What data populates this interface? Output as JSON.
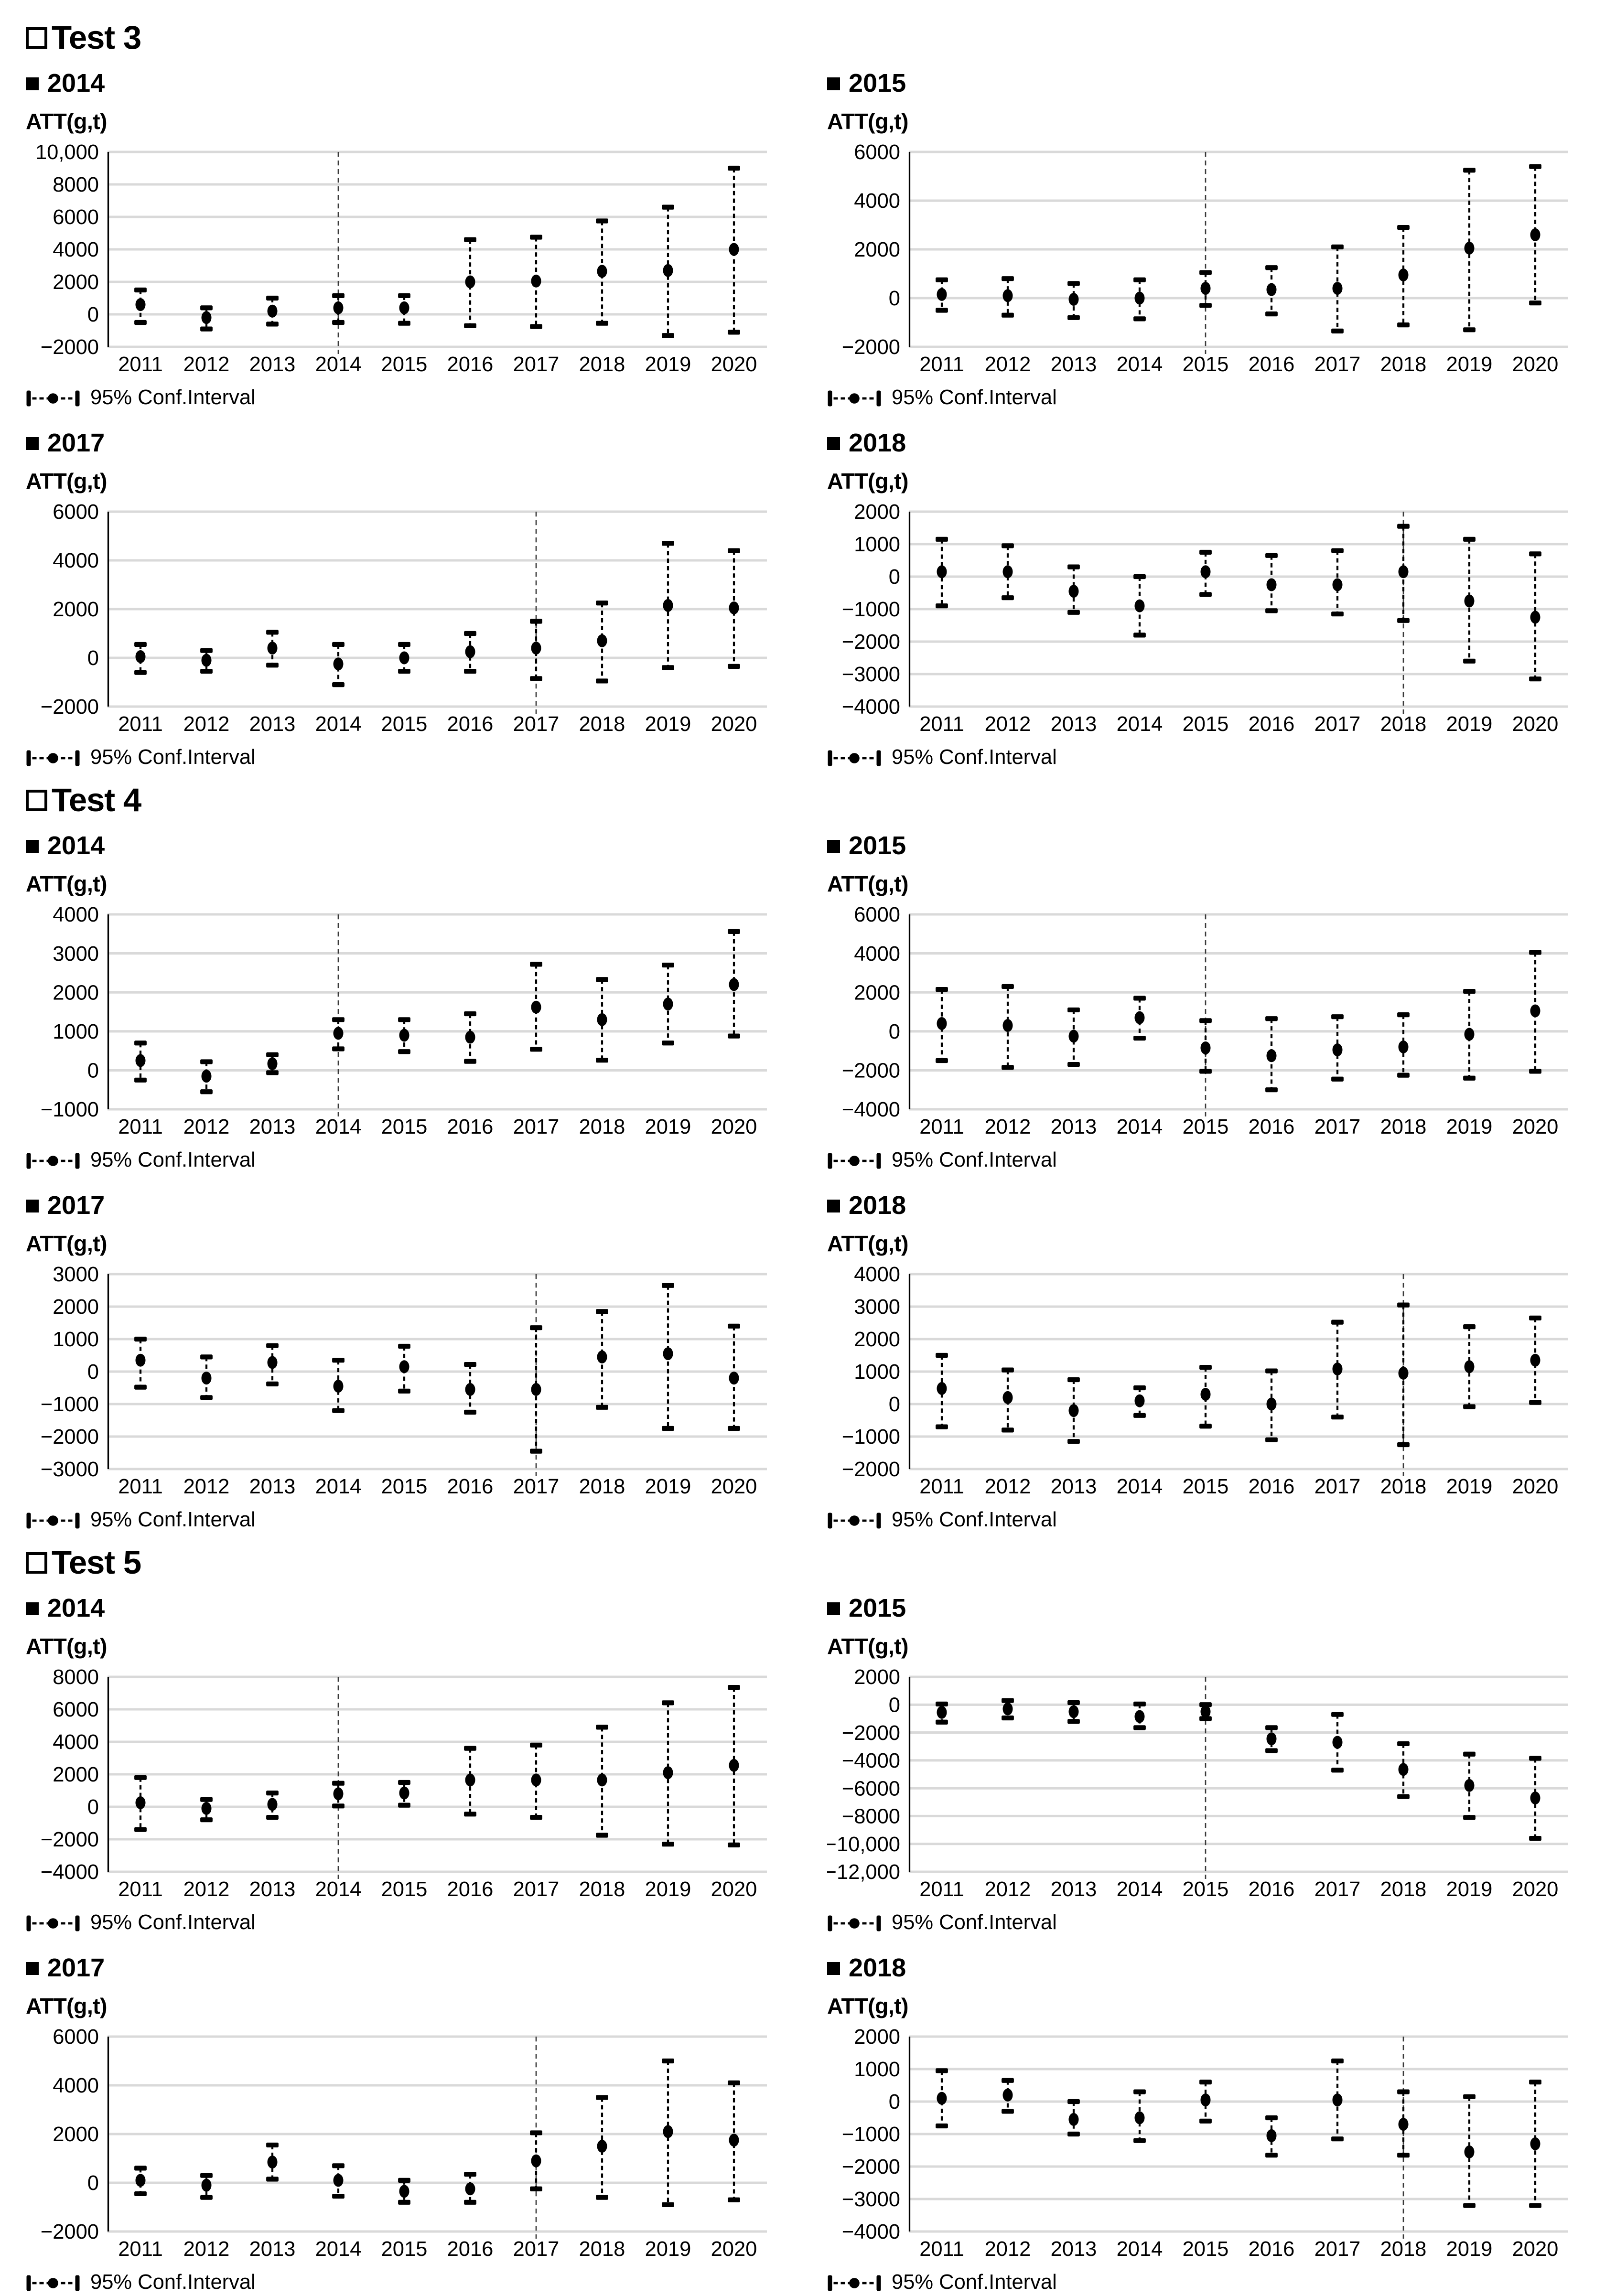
{
  "years": [
    "2011",
    "2012",
    "2013",
    "2014",
    "2015",
    "2016",
    "2017",
    "2018",
    "2019",
    "2020"
  ],
  "axis_label": "ATT(g,t)",
  "legend_label": "95% Conf.Interval",
  "sections": [
    {
      "title": "Test 3"
    },
    {
      "title": "Test 4"
    },
    {
      "title": "Test 5"
    }
  ],
  "chart_data": [
    {
      "type": "scatter",
      "error_bars": true,
      "section": "Test 3",
      "group": "2014",
      "ylabel": "ATT(g,t)",
      "treatment_year": "2014",
      "ylim": [
        -2000,
        10000
      ],
      "yticks": [
        10000,
        8000,
        6000,
        4000,
        2000,
        0,
        -2000
      ],
      "ytick_labels": [
        "10,000",
        "8000",
        "6000",
        "4000",
        "2000",
        "0",
        "−2000"
      ],
      "series": [
        {
          "name": "ci_lower",
          "values": [
            -500,
            -900,
            -600,
            -500,
            -550,
            -700,
            -750,
            -550,
            -1300,
            -1100
          ]
        },
        {
          "name": "estimate",
          "values": [
            600,
            -200,
            200,
            400,
            400,
            2000,
            2050,
            2650,
            2700,
            4000
          ]
        },
        {
          "name": "ci_upper",
          "values": [
            1500,
            400,
            1000,
            1150,
            1150,
            4600,
            4750,
            5750,
            6600,
            9000
          ]
        }
      ]
    },
    {
      "type": "scatter",
      "error_bars": true,
      "section": "Test 3",
      "group": "2015",
      "ylabel": "ATT(g,t)",
      "treatment_year": "2015",
      "ylim": [
        -2000,
        6000
      ],
      "yticks": [
        6000,
        4000,
        2000,
        0,
        -2000
      ],
      "ytick_labels": [
        "6000",
        "4000",
        "2000",
        "0",
        "−2000"
      ],
      "series": [
        {
          "name": "ci_lower",
          "values": [
            -500,
            -700,
            -800,
            -850,
            -300,
            -650,
            -1350,
            -1100,
            -1300,
            -200
          ]
        },
        {
          "name": "estimate",
          "values": [
            150,
            100,
            -50,
            0,
            400,
            350,
            400,
            950,
            2050,
            2600
          ]
        },
        {
          "name": "ci_upper",
          "values": [
            750,
            800,
            600,
            750,
            1050,
            1250,
            2100,
            2900,
            5250,
            5400
          ]
        }
      ]
    },
    {
      "type": "scatter",
      "error_bars": true,
      "section": "Test 3",
      "group": "2017",
      "ylabel": "ATT(g,t)",
      "treatment_year": "2017",
      "ylim": [
        -2000,
        6000
      ],
      "yticks": [
        6000,
        4000,
        2000,
        0,
        -2000
      ],
      "ytick_labels": [
        "6000",
        "4000",
        "2000",
        "0",
        "−2000"
      ],
      "series": [
        {
          "name": "ci_lower",
          "values": [
            -600,
            -550,
            -300,
            -1100,
            -550,
            -550,
            -850,
            -950,
            -400,
            -350
          ]
        },
        {
          "name": "estimate",
          "values": [
            50,
            -100,
            400,
            -250,
            0,
            250,
            400,
            700,
            2150,
            2050
          ]
        },
        {
          "name": "ci_upper",
          "values": [
            550,
            300,
            1050,
            550,
            550,
            1000,
            1500,
            2250,
            4700,
            4400
          ]
        }
      ]
    },
    {
      "type": "scatter",
      "error_bars": true,
      "section": "Test 3",
      "group": "2018",
      "ylabel": "ATT(g,t)",
      "treatment_year": "2018",
      "ylim": [
        -4000,
        2000
      ],
      "yticks": [
        2000,
        1000,
        0,
        -1000,
        -2000,
        -3000,
        -4000
      ],
      "ytick_labels": [
        "2000",
        "1000",
        "0",
        "−1000",
        "−2000",
        "−3000",
        "−4000"
      ],
      "series": [
        {
          "name": "ci_lower",
          "values": [
            -900,
            -650,
            -1100,
            -1800,
            -550,
            -1050,
            -1150,
            -1350,
            -2600,
            -3150
          ]
        },
        {
          "name": "estimate",
          "values": [
            150,
            150,
            -450,
            -900,
            150,
            -250,
            -250,
            150,
            -750,
            -1250
          ]
        },
        {
          "name": "ci_upper",
          "values": [
            1150,
            950,
            300,
            0,
            750,
            650,
            800,
            1550,
            1150,
            700
          ]
        }
      ]
    },
    {
      "type": "scatter",
      "error_bars": true,
      "section": "Test 4",
      "group": "2014",
      "ylabel": "ATT(g,t)",
      "treatment_year": "2014",
      "ylim": [
        -1000,
        4000
      ],
      "yticks": [
        4000,
        3000,
        2000,
        1000,
        0,
        -1000
      ],
      "ytick_labels": [
        "4000",
        "3000",
        "2000",
        "1000",
        "0",
        "−1000"
      ],
      "series": [
        {
          "name": "ci_lower",
          "values": [
            -250,
            -550,
            -60,
            550,
            480,
            230,
            540,
            260,
            700,
            880
          ]
        },
        {
          "name": "estimate",
          "values": [
            250,
            -150,
            170,
            950,
            900,
            850,
            1620,
            1300,
            1700,
            2200
          ]
        },
        {
          "name": "ci_upper",
          "values": [
            700,
            220,
            400,
            1300,
            1300,
            1450,
            2720,
            2330,
            2700,
            3560
          ]
        }
      ]
    },
    {
      "type": "scatter",
      "error_bars": true,
      "section": "Test 4",
      "group": "2015",
      "ylabel": "ATT(g,t)",
      "treatment_year": "2015",
      "ylim": [
        -4000,
        6000
      ],
      "yticks": [
        6000,
        4000,
        2000,
        0,
        -2000,
        -4000
      ],
      "ytick_labels": [
        "6000",
        "4000",
        "2000",
        "0",
        "−2000",
        "−4000"
      ],
      "series": [
        {
          "name": "ci_lower",
          "values": [
            -1500,
            -1850,
            -1700,
            -350,
            -2050,
            -3000,
            -2450,
            -2250,
            -2400,
            -2050
          ]
        },
        {
          "name": "estimate",
          "values": [
            400,
            300,
            -250,
            700,
            -850,
            -1250,
            -950,
            -800,
            -150,
            1050
          ]
        },
        {
          "name": "ci_upper",
          "values": [
            2150,
            2300,
            1100,
            1700,
            550,
            650,
            750,
            850,
            2050,
            4050
          ]
        }
      ]
    },
    {
      "type": "scatter",
      "error_bars": true,
      "section": "Test 4",
      "group": "2017",
      "ylabel": "ATT(g,t)",
      "treatment_year": "2017",
      "ylim": [
        -3000,
        3000
      ],
      "yticks": [
        3000,
        2000,
        1000,
        0,
        -1000,
        -2000,
        -3000
      ],
      "ytick_labels": [
        "3000",
        "2000",
        "1000",
        "0",
        "−1000",
        "−2000",
        "−3000"
      ],
      "series": [
        {
          "name": "ci_lower",
          "values": [
            -480,
            -800,
            -380,
            -1200,
            -600,
            -1250,
            -2450,
            -1100,
            -1750,
            -1750
          ]
        },
        {
          "name": "estimate",
          "values": [
            350,
            -200,
            280,
            -450,
            150,
            -550,
            -550,
            450,
            550,
            -200
          ]
        },
        {
          "name": "ci_upper",
          "values": [
            1000,
            450,
            800,
            350,
            780,
            220,
            1350,
            1850,
            2650,
            1400
          ]
        }
      ]
    },
    {
      "type": "scatter",
      "error_bars": true,
      "section": "Test 4",
      "group": "2018",
      "ylabel": "ATT(g,t)",
      "treatment_year": "2018",
      "ylim": [
        -2000,
        4000
      ],
      "yticks": [
        4000,
        3000,
        2000,
        1000,
        0,
        -1000,
        -2000
      ],
      "ytick_labels": [
        "4000",
        "3000",
        "2000",
        "1000",
        "0",
        "−1000",
        "−2000"
      ],
      "series": [
        {
          "name": "ci_lower",
          "values": [
            -700,
            -800,
            -1150,
            -350,
            -680,
            -1100,
            -400,
            -1250,
            -80,
            50
          ]
        },
        {
          "name": "estimate",
          "values": [
            480,
            200,
            -200,
            100,
            300,
            0,
            1080,
            950,
            1150,
            1350
          ]
        },
        {
          "name": "ci_upper",
          "values": [
            1500,
            1050,
            750,
            500,
            1130,
            1020,
            2520,
            3050,
            2380,
            2650
          ]
        }
      ]
    },
    {
      "type": "scatter",
      "error_bars": true,
      "section": "Test 5",
      "group": "2014",
      "ylabel": "ATT(g,t)",
      "treatment_year": "2014",
      "ylim": [
        -4000,
        8000
      ],
      "yticks": [
        8000,
        6000,
        4000,
        2000,
        0,
        -2000,
        -4000
      ],
      "ytick_labels": [
        "8000",
        "6000",
        "4000",
        "2000",
        "0",
        "−2000",
        "−4000"
      ],
      "series": [
        {
          "name": "ci_lower",
          "values": [
            -1400,
            -800,
            -650,
            50,
            100,
            -450,
            -650,
            -1750,
            -2300,
            -2350
          ]
        },
        {
          "name": "estimate",
          "values": [
            250,
            -100,
            150,
            800,
            850,
            1650,
            1650,
            1650,
            2100,
            2550
          ]
        },
        {
          "name": "ci_upper",
          "values": [
            1800,
            450,
            850,
            1450,
            1500,
            3600,
            3800,
            4900,
            6400,
            7350
          ]
        }
      ]
    },
    {
      "type": "scatter",
      "error_bars": true,
      "section": "Test 5",
      "group": "2015",
      "ylabel": "ATT(g,t)",
      "treatment_year": "2015",
      "ylim": [
        -12000,
        2000
      ],
      "yticks": [
        2000,
        0,
        -2000,
        -4000,
        -6000,
        -8000,
        -10000,
        -12000
      ],
      "ytick_labels": [
        "2000",
        "0",
        "−2000",
        "−4000",
        "−6000",
        "−8000",
        "−10,000",
        "−12,000"
      ],
      "series": [
        {
          "name": "ci_lower",
          "values": [
            -1250,
            -950,
            -1200,
            -1650,
            -1000,
            -3300,
            -4700,
            -6600,
            -8100,
            -9600
          ]
        },
        {
          "name": "estimate",
          "values": [
            -550,
            -300,
            -500,
            -850,
            -500,
            -2450,
            -2700,
            -4650,
            -5800,
            -6700
          ]
        },
        {
          "name": "ci_upper",
          "values": [
            50,
            300,
            150,
            50,
            0,
            -1650,
            -700,
            -2800,
            -3550,
            -3850
          ]
        }
      ]
    },
    {
      "type": "scatter",
      "error_bars": true,
      "section": "Test 5",
      "group": "2017",
      "ylabel": "ATT(g,t)",
      "treatment_year": "2017",
      "ylim": [
        -2000,
        6000
      ],
      "yticks": [
        6000,
        4000,
        2000,
        0,
        -2000
      ],
      "ytick_labels": [
        "6000",
        "4000",
        "2000",
        "0",
        "−2000"
      ],
      "series": [
        {
          "name": "ci_lower",
          "values": [
            -450,
            -600,
            150,
            -550,
            -800,
            -800,
            -250,
            -600,
            -900,
            -700
          ]
        },
        {
          "name": "estimate",
          "values": [
            100,
            -100,
            850,
            100,
            -350,
            -250,
            900,
            1500,
            2100,
            1750
          ]
        },
        {
          "name": "ci_upper",
          "values": [
            600,
            300,
            1550,
            700,
            100,
            350,
            2050,
            3500,
            5000,
            4100
          ]
        }
      ]
    },
    {
      "type": "scatter",
      "error_bars": true,
      "section": "Test 5",
      "group": "2018",
      "ylabel": "ATT(g,t)",
      "treatment_year": "2018",
      "ylim": [
        -4000,
        2000
      ],
      "yticks": [
        2000,
        1000,
        0,
        -1000,
        -2000,
        -3000,
        -4000
      ],
      "ytick_labels": [
        "2000",
        "1000",
        "0",
        "−1000",
        "−2000",
        "−3000",
        "−4000"
      ],
      "series": [
        {
          "name": "ci_lower",
          "values": [
            -750,
            -300,
            -1000,
            -1200,
            -600,
            -1650,
            -1150,
            -1650,
            -3200,
            -3200
          ]
        },
        {
          "name": "estimate",
          "values": [
            100,
            200,
            -550,
            -500,
            50,
            -1050,
            50,
            -700,
            -1550,
            -1300
          ]
        },
        {
          "name": "ci_upper",
          "values": [
            950,
            650,
            0,
            300,
            600,
            -500,
            1250,
            300,
            150,
            600
          ]
        }
      ]
    }
  ],
  "style": {
    "gridline_color": "#d9d9d9",
    "marker_color": "#000000",
    "treatment_line_color": "#3a3a3a"
  }
}
